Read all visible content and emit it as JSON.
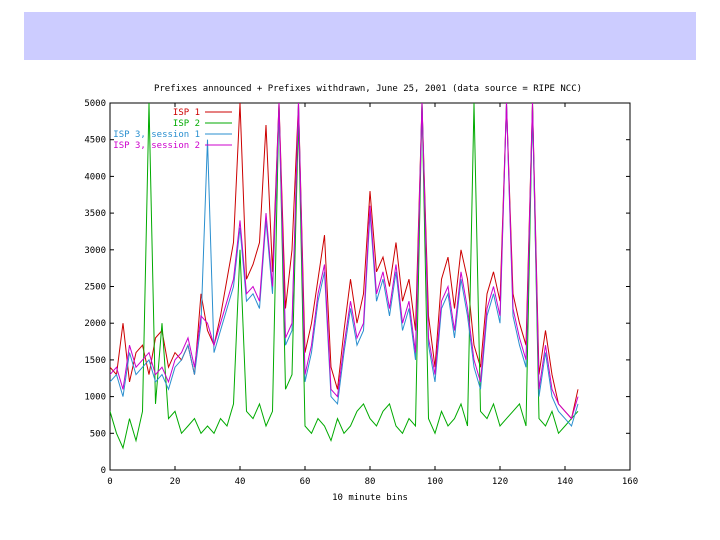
{
  "slide": {
    "banner_color": "#ccccff"
  },
  "chart_data": {
    "type": "line",
    "title": "Prefixes announced + Prefixes withdrawn, June 25, 2001 (data source = RIPE NCC)",
    "xlabel": "10 minute bins",
    "ylabel": "",
    "xlim": [
      0,
      160
    ],
    "ylim": [
      0,
      5000
    ],
    "xticks": [
      0,
      20,
      40,
      60,
      80,
      100,
      120,
      140,
      160
    ],
    "yticks": [
      0,
      500,
      1000,
      1500,
      2000,
      2500,
      3000,
      3500,
      4000,
      4500,
      5000
    ],
    "legend_position": "top-left",
    "series": [
      {
        "name": "ISP 1",
        "color": "#cc0000",
        "x": [
          0,
          2,
          4,
          6,
          8,
          10,
          12,
          14,
          16,
          18,
          20,
          22,
          24,
          26,
          28,
          30,
          32,
          34,
          36,
          38,
          40,
          42,
          44,
          46,
          48,
          50,
          52,
          54,
          56,
          58,
          60,
          62,
          64,
          66,
          68,
          70,
          72,
          74,
          76,
          78,
          80,
          82,
          84,
          86,
          88,
          90,
          92,
          94,
          96,
          98,
          100,
          102,
          104,
          106,
          108,
          110,
          112,
          114,
          116,
          118,
          120,
          122,
          124,
          126,
          128,
          130,
          132,
          134,
          136,
          138,
          140,
          142,
          144
        ],
        "y": [
          1400,
          1300,
          2000,
          1200,
          1600,
          1700,
          1300,
          1800,
          1900,
          1400,
          1600,
          1500,
          1700,
          1300,
          2400,
          1900,
          1700,
          2100,
          2600,
          3100,
          5000,
          2600,
          2800,
          3100,
          4700,
          2700,
          5000,
          2200,
          3000,
          5000,
          1600,
          2000,
          2600,
          3200,
          1400,
          1100,
          1900,
          2600,
          2000,
          2400,
          3800,
          2700,
          2900,
          2500,
          3100,
          2300,
          2600,
          1900,
          5000,
          2100,
          1400,
          2600,
          2900,
          2200,
          3000,
          2600,
          1700,
          1400,
          2400,
          2700,
          2300,
          5000,
          2400,
          2000,
          1700,
          5000,
          1300,
          1900,
          1300,
          900,
          800,
          700,
          1100
        ]
      },
      {
        "name": "ISP 2",
        "color": "#00aa00",
        "x": [
          0,
          2,
          4,
          6,
          8,
          10,
          12,
          14,
          16,
          18,
          20,
          22,
          24,
          26,
          28,
          30,
          32,
          34,
          36,
          38,
          40,
          42,
          44,
          46,
          48,
          50,
          52,
          54,
          56,
          58,
          60,
          62,
          64,
          66,
          68,
          70,
          72,
          74,
          76,
          78,
          80,
          82,
          84,
          86,
          88,
          90,
          92,
          94,
          96,
          98,
          100,
          102,
          104,
          106,
          108,
          110,
          112,
          114,
          116,
          118,
          120,
          122,
          124,
          126,
          128,
          130,
          132,
          134,
          136,
          138,
          140,
          142,
          144
        ],
        "y": [
          800,
          500,
          300,
          700,
          400,
          800,
          5000,
          900,
          2000,
          700,
          800,
          500,
          600,
          700,
          500,
          600,
          500,
          700,
          600,
          900,
          3000,
          800,
          700,
          900,
          600,
          800,
          5000,
          1100,
          1300,
          4800,
          600,
          500,
          700,
          600,
          400,
          700,
          500,
          600,
          800,
          900,
          700,
          600,
          800,
          900,
          600,
          500,
          700,
          600,
          5000,
          700,
          500,
          800,
          600,
          700,
          900,
          600,
          5000,
          800,
          700,
          900,
          600,
          700,
          800,
          900,
          600,
          5000,
          700,
          600,
          800,
          500,
          600,
          700,
          800
        ]
      },
      {
        "name": "ISP 3, session 1",
        "color": "#2a8fcf",
        "x": [
          0,
          2,
          4,
          6,
          8,
          10,
          12,
          14,
          16,
          18,
          20,
          22,
          24,
          26,
          28,
          30,
          32,
          34,
          36,
          38,
          40,
          42,
          44,
          46,
          48,
          50,
          52,
          54,
          56,
          58,
          60,
          62,
          64,
          66,
          68,
          70,
          72,
          74,
          76,
          78,
          80,
          82,
          84,
          86,
          88,
          90,
          92,
          94,
          96,
          98,
          100,
          102,
          104,
          106,
          108,
          110,
          112,
          114,
          116,
          118,
          120,
          122,
          124,
          126,
          128,
          130,
          132,
          134,
          136,
          138,
          140,
          142,
          144
        ],
        "y": [
          1200,
          1300,
          1000,
          1600,
          1300,
          1400,
          1500,
          1200,
          1300,
          1100,
          1400,
          1500,
          1700,
          1300,
          2000,
          4500,
          1600,
          1900,
          2200,
          2500,
          3300,
          2300,
          2400,
          2200,
          3400,
          2400,
          4900,
          1700,
          1900,
          5000,
          1200,
          1600,
          2300,
          2700,
          1000,
          900,
          1600,
          2200,
          1700,
          1900,
          3500,
          2300,
          2600,
          2100,
          2700,
          1900,
          2200,
          1500,
          5000,
          1700,
          1200,
          2200,
          2400,
          1800,
          2600,
          2100,
          1400,
          1100,
          2100,
          2400,
          2000,
          5000,
          2100,
          1700,
          1400,
          4900,
          1000,
          1600,
          1000,
          800,
          700,
          600,
          900
        ]
      },
      {
        "name": "ISP 3, session 2",
        "color": "#cc00cc",
        "x": [
          0,
          2,
          4,
          6,
          8,
          10,
          12,
          14,
          16,
          18,
          20,
          22,
          24,
          26,
          28,
          30,
          32,
          34,
          36,
          38,
          40,
          42,
          44,
          46,
          48,
          50,
          52,
          54,
          56,
          58,
          60,
          62,
          64,
          66,
          68,
          70,
          72,
          74,
          76,
          78,
          80,
          82,
          84,
          86,
          88,
          90,
          92,
          94,
          96,
          98,
          100,
          102,
          104,
          106,
          108,
          110,
          112,
          114,
          116,
          118,
          120,
          122,
          124,
          126,
          128,
          130,
          132,
          134,
          136,
          138,
          140,
          142,
          144
        ],
        "y": [
          1300,
          1400,
          1100,
          1700,
          1400,
          1500,
          1600,
          1300,
          1400,
          1200,
          1500,
          1600,
          1800,
          1400,
          2100,
          2000,
          1700,
          2000,
          2300,
          2600,
          3400,
          2400,
          2500,
          2300,
          3500,
          2500,
          5000,
          1800,
          2000,
          5000,
          1300,
          1700,
          2400,
          2800,
          1100,
          1000,
          1700,
          2300,
          1800,
          2000,
          3600,
          2400,
          2700,
          2200,
          2800,
          2000,
          2300,
          1600,
          5000,
          1800,
          1300,
          2300,
          2500,
          1900,
          2700,
          2200,
          1500,
          1200,
          2200,
          2500,
          2100,
          5000,
          2200,
          1800,
          1500,
          5000,
          1100,
          1700,
          1100,
          900,
          800,
          700,
          1000
        ]
      }
    ]
  }
}
